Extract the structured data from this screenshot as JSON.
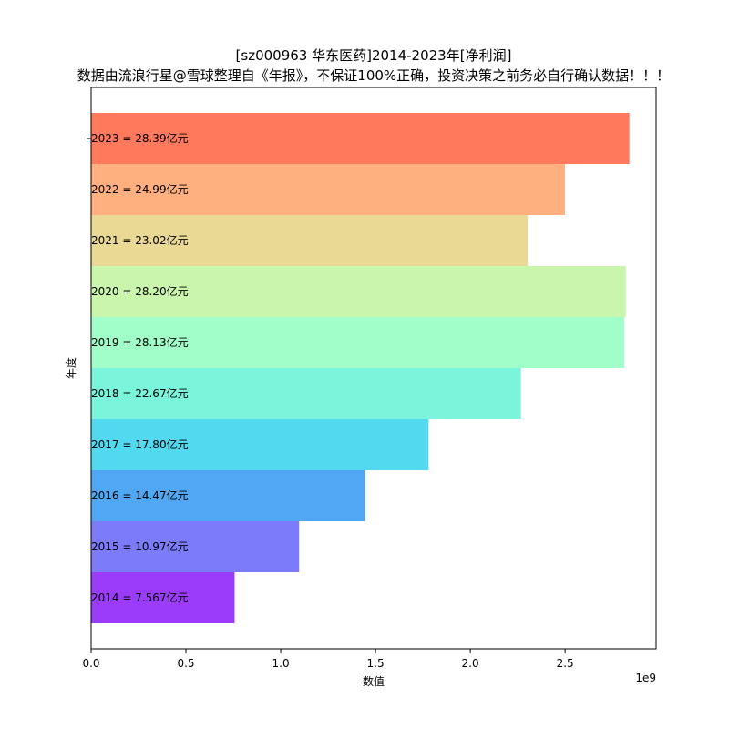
{
  "chart_data": {
    "type": "bar",
    "orientation": "horizontal",
    "title": "[sz000963 华东医药]2014-2023年[净利润]",
    "subtitle": "数据由流浪行星@雪球整理自《年报》，不保证100%正确，投资决策之前务必自行确认数据！！！",
    "xlabel": "数值",
    "ylabel": "年度",
    "x_scale_label": "1e9",
    "xlim": [
      0,
      2.98
    ],
    "xticks": [
      0.0,
      0.5,
      1.0,
      1.5,
      2.0,
      2.5
    ],
    "xtick_labels": [
      "0.0",
      "0.5",
      "1.0",
      "1.5",
      "2.0",
      "2.5"
    ],
    "categories": [
      "2023",
      "2022",
      "2021",
      "2020",
      "2019",
      "2018",
      "2017",
      "2016",
      "2015",
      "2014"
    ],
    "values": [
      2.839,
      2.499,
      2.302,
      2.82,
      2.813,
      2.267,
      1.78,
      1.447,
      1.097,
      0.7567
    ],
    "labels": [
      "2023 = 28.39亿元",
      "2022 = 24.99亿元",
      "2021 = 23.02亿元",
      "2020 = 28.20亿元",
      "2019 = 28.13亿元",
      "2018 = 22.67亿元",
      "2017 = 17.80亿元",
      "2016 = 14.47亿元",
      "2015 = 10.97亿元",
      "2014 = 7.567亿元"
    ],
    "colors": [
      "#ff7a5c",
      "#ffb07e",
      "#ead895",
      "#c9f5ac",
      "#a2fec8",
      "#7af5dc",
      "#52d8ef",
      "#50a8f5",
      "#7c7cfb",
      "#9b3cfb"
    ],
    "grid": false,
    "legend": "none"
  }
}
